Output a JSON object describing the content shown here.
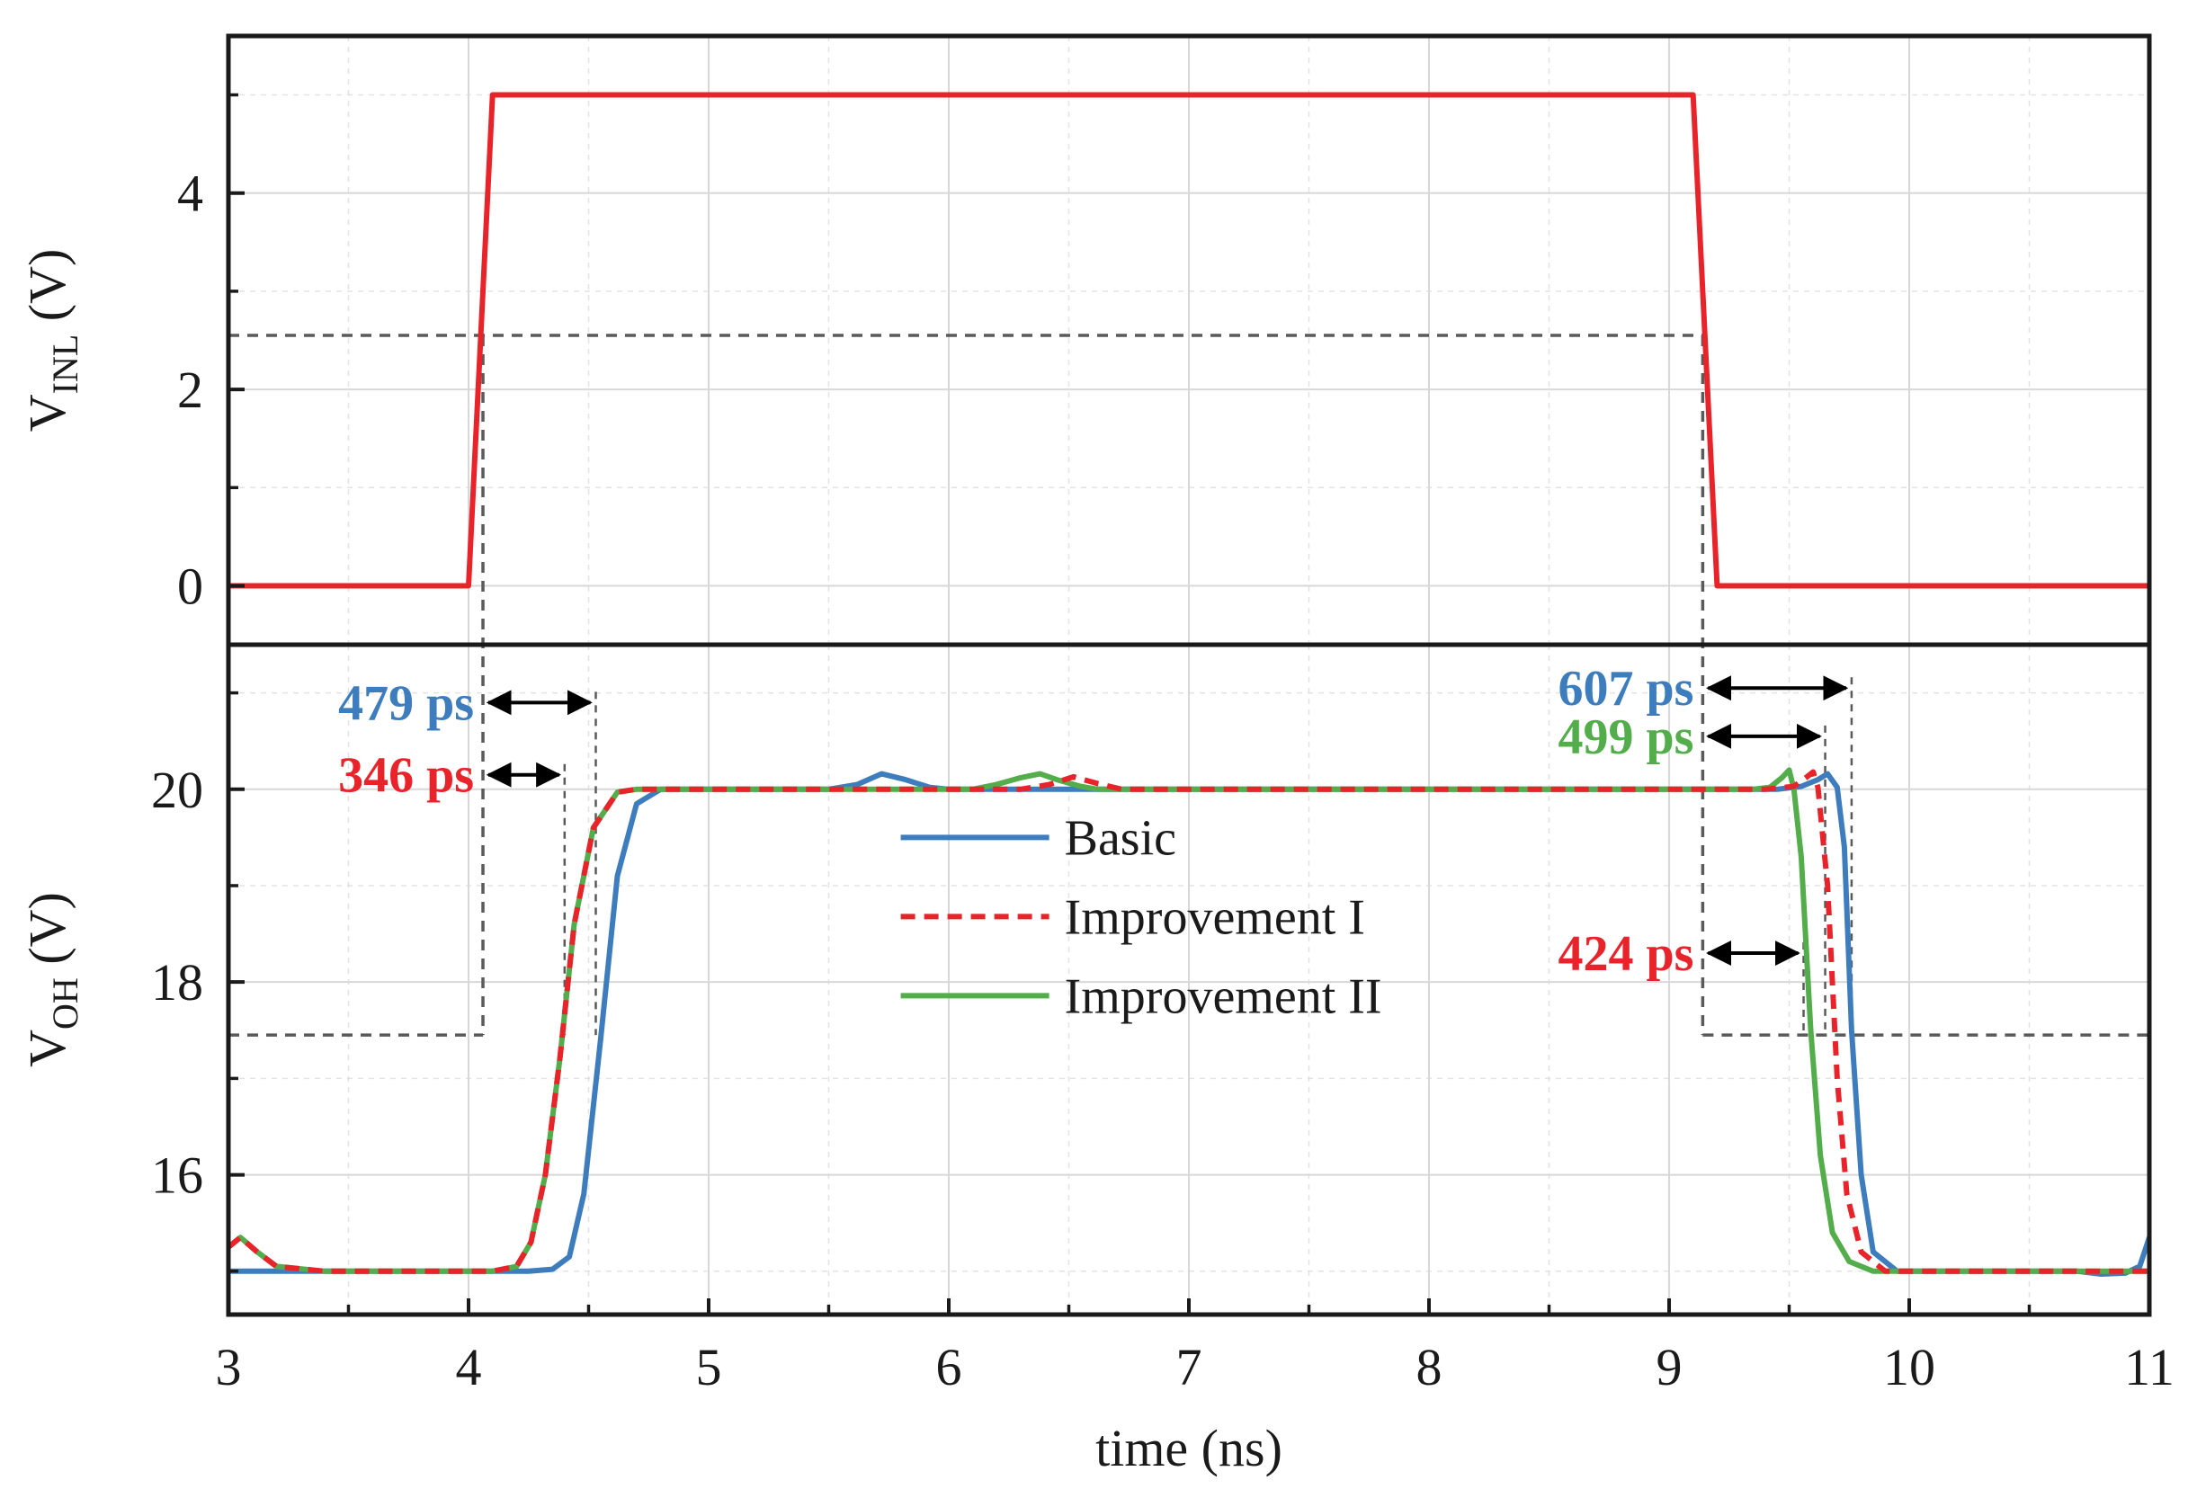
{
  "colors": {
    "basic": "#3d7dbd",
    "improvement1": "#e8232a",
    "improvement2": "#52ad4a",
    "input": "#e8232a",
    "guide": "#5a5a5a",
    "grid": "#d8d8d8",
    "axis": "#1a1a1a"
  },
  "chart_data": [
    {
      "id": "top",
      "type": "line",
      "ylabel_main": "V",
      "ylabel_sub": "INL",
      "ylabel_unit": " (V)",
      "xlim": [
        3,
        11
      ],
      "ylim": [
        -0.6,
        5.6
      ],
      "yticks": [
        0,
        2,
        4
      ],
      "yminor": [
        1,
        3,
        5
      ],
      "series": [
        {
          "name": "Input",
          "color": "input",
          "style": "solid",
          "x": [
            3,
            4,
            4.1,
            9.1,
            9.2,
            11
          ],
          "y": [
            0,
            0,
            5,
            5,
            0,
            0
          ]
        }
      ],
      "guide": {
        "x": [
          4.06,
          9.14
        ],
        "y": 2.55
      }
    },
    {
      "id": "bottom",
      "type": "line",
      "ylabel_main": "V",
      "ylabel_sub": "OH",
      "ylabel_unit": " (V)",
      "xlabel": "time (ns)",
      "xlim": [
        3,
        11
      ],
      "ylim": [
        14.55,
        21.5
      ],
      "xticks": [
        3,
        4,
        5,
        6,
        7,
        8,
        9,
        10,
        11
      ],
      "xminor": [
        3.5,
        4.5,
        5.5,
        6.5,
        7.5,
        8.5,
        9.5,
        10.5
      ],
      "yticks": [
        16,
        18,
        20
      ],
      "yminor": [
        15,
        17,
        19,
        21
      ],
      "series": [
        {
          "name": "Basic",
          "color": "basic",
          "style": "solid",
          "x": [
            3,
            3.6,
            4.25,
            4.35,
            4.42,
            4.48,
            4.55,
            4.62,
            4.7,
            4.8,
            5.5,
            5.62,
            5.72,
            5.82,
            5.92,
            6.0,
            9.45,
            9.55,
            9.62,
            9.66,
            9.7,
            9.73,
            9.76,
            9.8,
            9.85,
            9.95,
            10.7,
            10.8,
            10.9,
            10.96,
            11
          ],
          "y": [
            15,
            15,
            15,
            15.02,
            15.15,
            15.8,
            17.4,
            19.1,
            19.85,
            20,
            20,
            20.05,
            20.16,
            20.1,
            20.02,
            20,
            20,
            20.03,
            20.1,
            20.16,
            20.02,
            19.4,
            17.5,
            16.0,
            15.2,
            15,
            15,
            14.97,
            14.98,
            15.05,
            15.35
          ]
        },
        {
          "name": "Improvement I",
          "color": "improvement1",
          "style": "dashed",
          "x": [
            3,
            3.05,
            3.12,
            3.2,
            3.4,
            4.1,
            4.2,
            4.26,
            4.32,
            4.38,
            4.44,
            4.52,
            4.62,
            4.7,
            6.3,
            6.42,
            6.52,
            6.62,
            6.72,
            9.4,
            9.52,
            9.57,
            9.6,
            9.62,
            9.66,
            9.7,
            9.74,
            9.8,
            9.9,
            11
          ],
          "y": [
            15.25,
            15.35,
            15.2,
            15.05,
            15,
            15,
            15.05,
            15.3,
            16.0,
            17.2,
            18.6,
            19.6,
            19.97,
            20,
            20,
            20.05,
            20.13,
            20.06,
            20,
            20,
            20.03,
            20.12,
            20.18,
            20.02,
            19.0,
            17.0,
            15.8,
            15.2,
            15,
            15
          ]
        },
        {
          "name": "Improvement II",
          "color": "improvement2",
          "style": "solid",
          "x": [
            3,
            3.05,
            3.12,
            3.2,
            3.4,
            4.1,
            4.2,
            4.26,
            4.32,
            4.38,
            4.44,
            4.52,
            4.62,
            4.7,
            6.1,
            6.2,
            6.3,
            6.38,
            6.45,
            6.55,
            6.62,
            9.35,
            9.42,
            9.47,
            9.5,
            9.52,
            9.55,
            9.59,
            9.63,
            9.68,
            9.75,
            9.85,
            11
          ],
          "y": [
            15.25,
            15.35,
            15.2,
            15.05,
            15,
            15,
            15.05,
            15.3,
            16.0,
            17.2,
            18.6,
            19.6,
            19.97,
            20,
            20,
            20.05,
            20.12,
            20.16,
            20.1,
            20.03,
            20,
            20,
            20.02,
            20.12,
            20.2,
            20.0,
            19.3,
            17.5,
            16.2,
            15.4,
            15.1,
            15,
            15
          ]
        }
      ],
      "guide": {
        "x": [
          4.06,
          9.14
        ],
        "y": 17.45
      },
      "legend": {
        "placement": "center",
        "entries": [
          "Basic",
          "Improvement I",
          "Improvement II"
        ]
      },
      "annotations": [
        {
          "text": "479 ps",
          "color": "basic",
          "x1": 4.06,
          "x2": 4.53,
          "y": 20.9
        },
        {
          "text": "346 ps",
          "color": "improvement1",
          "x1": 4.06,
          "x2": 4.4,
          "y": 20.15
        },
        {
          "text": "607 ps",
          "color": "basic",
          "x1": 9.14,
          "x2": 9.76,
          "y": 21.05
        },
        {
          "text": "499 ps",
          "color": "improvement2",
          "x1": 9.14,
          "x2": 9.65,
          "y": 20.55
        },
        {
          "text": "424 ps",
          "color": "improvement1",
          "x1": 9.14,
          "x2": 9.56,
          "y": 18.3
        }
      ]
    }
  ]
}
